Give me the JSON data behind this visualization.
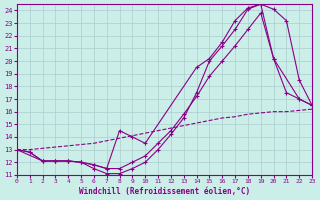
{
  "xlabel": "Windchill (Refroidissement éolien,°C)",
  "background_color": "#cceee8",
  "grid_color": "#aacccc",
  "line_color": "#880088",
  "xlim_min": 0,
  "xlim_max": 23,
  "ylim_min": 11,
  "ylim_max": 24.5,
  "xticks": [
    0,
    1,
    2,
    3,
    4,
    5,
    6,
    7,
    8,
    9,
    10,
    11,
    12,
    13,
    14,
    15,
    16,
    17,
    18,
    19,
    20,
    21,
    22,
    23
  ],
  "yticks": [
    11,
    12,
    13,
    14,
    15,
    16,
    17,
    18,
    19,
    20,
    21,
    22,
    23,
    24
  ],
  "curve1_x": [
    0,
    1,
    2,
    3,
    4,
    5,
    6,
    7,
    8,
    9,
    10,
    11,
    12,
    13,
    14,
    15,
    16,
    17,
    18,
    19,
    20,
    21,
    22,
    23
  ],
  "curve1_y": [
    13.0,
    12.8,
    12.1,
    12.1,
    12.1,
    12.0,
    11.5,
    11.1,
    11.1,
    11.5,
    12.0,
    13.0,
    14.2,
    15.5,
    17.5,
    20.0,
    21.2,
    22.5,
    24.1,
    24.5,
    24.1,
    23.2,
    18.5,
    16.5
  ],
  "curve2_x": [
    0,
    1,
    2,
    3,
    4,
    5,
    6,
    7,
    8,
    9,
    10,
    11,
    12,
    13,
    14,
    15,
    16,
    17,
    18,
    19,
    20,
    21,
    22,
    23
  ],
  "curve2_y": [
    13.0,
    12.8,
    12.1,
    12.1,
    12.1,
    12.0,
    11.8,
    11.5,
    11.5,
    12.0,
    12.5,
    13.5,
    14.5,
    15.8,
    17.2,
    18.8,
    20.0,
    21.2,
    22.5,
    23.8,
    20.2,
    17.5,
    17.0,
    16.5
  ],
  "curve3_x": [
    0,
    2,
    3,
    4,
    5,
    6,
    7,
    8,
    9,
    10,
    14,
    15,
    16,
    17,
    18,
    19,
    20,
    22,
    23
  ],
  "curve3_y": [
    13.0,
    12.1,
    12.1,
    12.1,
    12.0,
    11.8,
    11.5,
    14.5,
    14.0,
    13.5,
    19.5,
    20.2,
    21.5,
    23.2,
    24.2,
    24.5,
    20.2,
    17.0,
    16.5
  ],
  "curve4_x": [
    0,
    1,
    2,
    3,
    4,
    5,
    6,
    7,
    8,
    9,
    10,
    11,
    12,
    13,
    14,
    15,
    16,
    17,
    18,
    19,
    20,
    21,
    22,
    23
  ],
  "curve4_y": [
    13.0,
    13.0,
    13.1,
    13.2,
    13.3,
    13.4,
    13.5,
    13.7,
    13.9,
    14.1,
    14.3,
    14.5,
    14.7,
    14.9,
    15.1,
    15.3,
    15.5,
    15.6,
    15.8,
    15.9,
    16.0,
    16.0,
    16.1,
    16.2
  ]
}
